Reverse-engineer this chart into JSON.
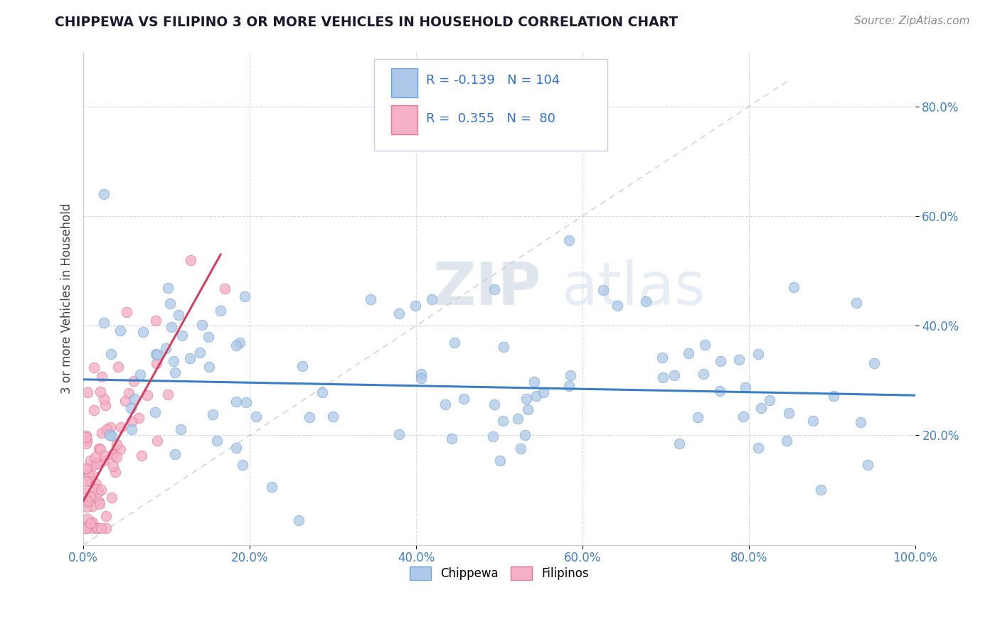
{
  "title": "CHIPPEWA VS FILIPINO 3 OR MORE VEHICLES IN HOUSEHOLD CORRELATION CHART",
  "source": "Source: ZipAtlas.com",
  "ylabel": "3 or more Vehicles in Household",
  "xlim": [
    0.0,
    1.0
  ],
  "ylim": [
    0.0,
    0.9
  ],
  "xtick_labels": [
    "0.0%",
    "20.0%",
    "40.0%",
    "60.0%",
    "80.0%",
    "100.0%"
  ],
  "xtick_vals": [
    0.0,
    0.2,
    0.4,
    0.6,
    0.8,
    1.0
  ],
  "ytick_labels": [
    "20.0%",
    "40.0%",
    "60.0%",
    "80.0%"
  ],
  "ytick_vals": [
    0.2,
    0.4,
    0.6,
    0.8
  ],
  "chippewa_color": "#adc8e8",
  "filipino_color": "#f4b0c4",
  "chippewa_edge": "#6ea3d4",
  "filipino_edge": "#e07895",
  "chippewa_line_color": "#3b7ec8",
  "filipino_line_color": "#d44060",
  "R_chippewa": -0.139,
  "N_chippewa": 104,
  "R_filipino": 0.355,
  "N_filipino": 80,
  "watermark_zip": "ZIP",
  "watermark_atlas": "atlas",
  "background_color": "#ffffff",
  "grid_color": "#d0d8e8",
  "title_color": "#1a1a2e",
  "tick_color": "#4080c0",
  "ylabel_color": "#444444"
}
